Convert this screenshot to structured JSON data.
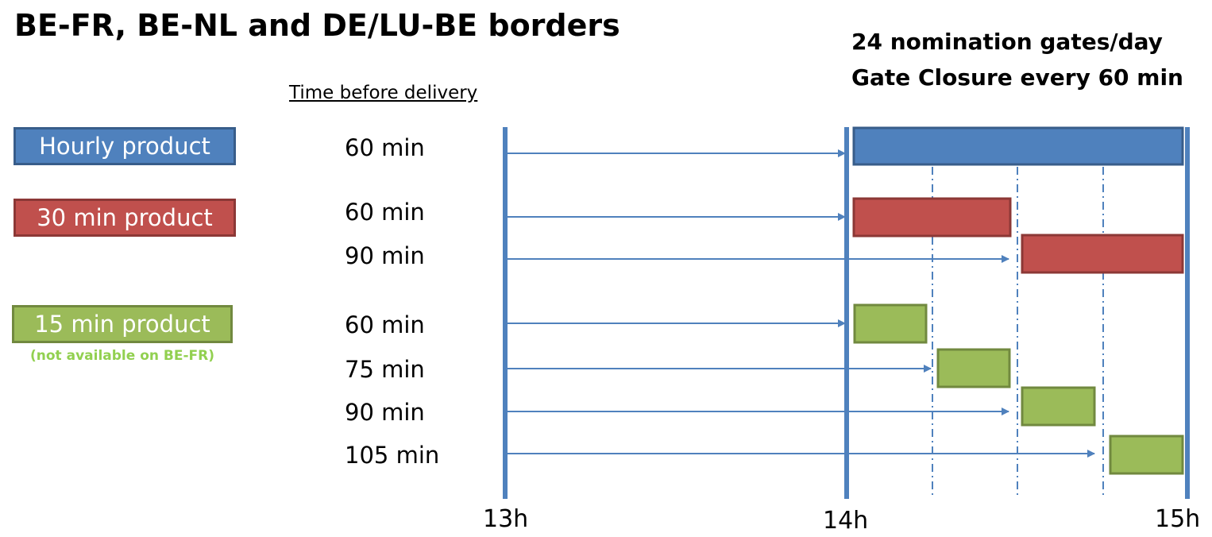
{
  "title": "BE-FR, BE-NL and DE/LU-BE borders",
  "gates_line1": "24 nomination gates/day",
  "gates_line2": "Gate Closure every 60 min",
  "time_before_delivery": "Time before delivery",
  "products": [
    {
      "label": "Hourly product",
      "fill": "#4f81bd",
      "border": "#385d8a"
    },
    {
      "label": "30 min product",
      "fill": "#c0504d",
      "border": "#8c3836"
    },
    {
      "label": "15 min product",
      "fill": "#9bbb59",
      "border": "#71893f"
    }
  ],
  "note": "(not available on BE-FR)",
  "rows": [
    {
      "label": "60 min",
      "product": 0
    },
    {
      "label": "60 min",
      "product": 1
    },
    {
      "label": "90 min",
      "product": 1
    },
    {
      "label": "60 min",
      "product": 2
    },
    {
      "label": "75 min",
      "product": 2
    },
    {
      "label": "90 min",
      "product": 2
    },
    {
      "label": "105 min",
      "product": 2
    }
  ],
  "ticks": [
    "13h",
    "14h",
    "15h"
  ],
  "colors": {
    "timeline": "#4f81bd",
    "arrow": "#4f81bd"
  }
}
